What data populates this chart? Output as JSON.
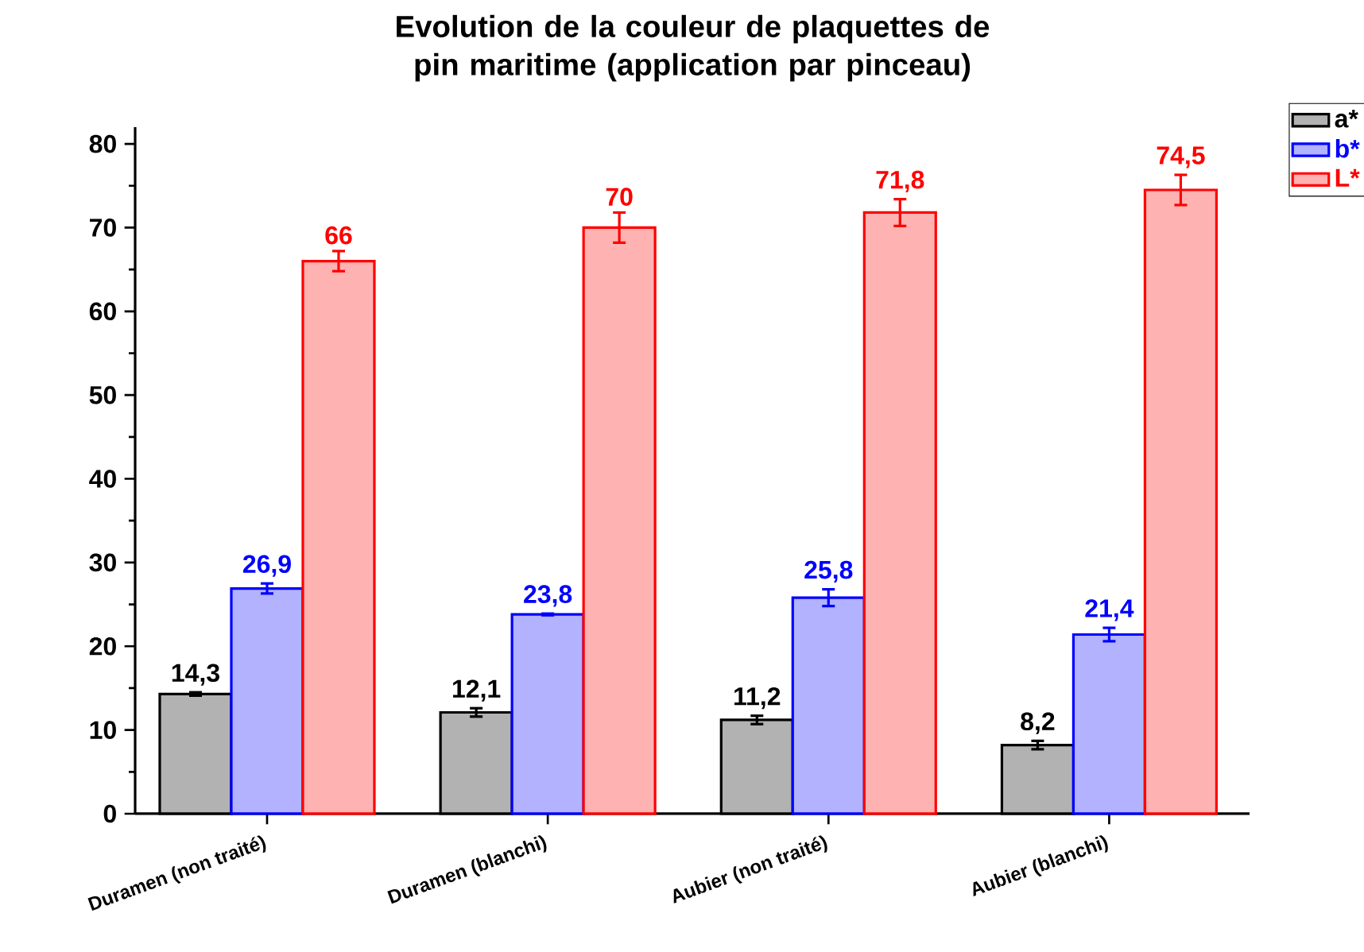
{
  "chart_data": {
    "type": "bar",
    "title": "Evolution de la couleur de plaquettes de pin maritime (application par pinceau)",
    "categories": [
      "Duramen (non traité)",
      "Duramen (blanchi)",
      "Aubier (non traité)",
      "Aubier (blanchi)"
    ],
    "series": [
      {
        "name": "a*",
        "color": "#000000",
        "values": [
          14.3,
          12.1,
          11.2,
          8.2
        ],
        "errors": [
          0.2,
          0.5,
          0.5,
          0.5
        ],
        "value_labels": [
          "14,3",
          "12,1",
          "11,2",
          "8,2"
        ]
      },
      {
        "name": "b*",
        "color": "#0000ff",
        "values": [
          26.9,
          23.8,
          25.8,
          21.4
        ],
        "errors": [
          0.6,
          0.1,
          1.0,
          0.8
        ],
        "value_labels": [
          "26,9",
          "23,8",
          "25,8",
          "21,4"
        ]
      },
      {
        "name": "L*",
        "color": "#ff0000",
        "values": [
          66,
          70,
          71.8,
          74.5
        ],
        "errors": [
          1.2,
          1.8,
          1.6,
          1.8
        ],
        "value_labels": [
          "66",
          "70",
          "71,8",
          "74,5"
        ]
      }
    ],
    "ylim": [
      0,
      82
    ],
    "yticks": [
      0,
      10,
      20,
      30,
      40,
      50,
      60,
      70,
      80
    ],
    "legend": "top right"
  }
}
